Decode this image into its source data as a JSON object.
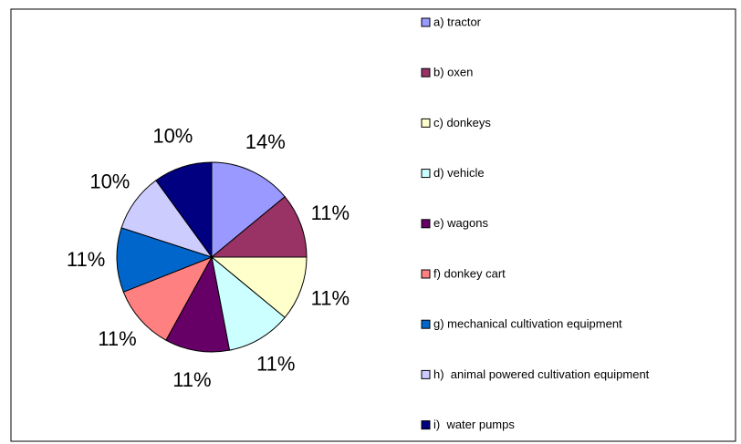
{
  "chart_data": {
    "type": "pie",
    "categories": [
      "a) tractor",
      "b) oxen",
      "c) donkeys",
      "d) vehicle",
      "e) wagons",
      "f) donkey cart",
      "g) mechanical cultivation equipment",
      "h)  animal powered cultivation equipment",
      "i)  water pumps"
    ],
    "values": [
      14,
      11,
      11,
      11,
      11,
      11,
      11,
      10,
      10
    ],
    "value_labels": [
      "14%",
      "11%",
      "11%",
      "11%",
      "11%",
      "11%",
      "11%",
      "10%",
      "10%"
    ],
    "colors": [
      "#9999FF",
      "#993366",
      "#FFFFCC",
      "#CCFFFF",
      "#660066",
      "#FF8080",
      "#0066CC",
      "#CCCCFF",
      "#000080"
    ],
    "legend": "right"
  }
}
